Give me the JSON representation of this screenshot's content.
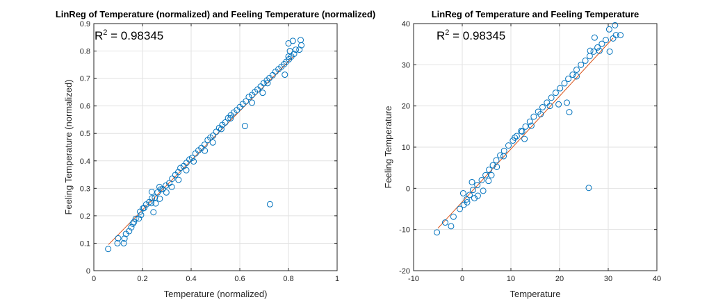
{
  "colors": {
    "marker": "#0072BD",
    "fit_line": "#D95319",
    "grid": "#e2e2e2",
    "axis": "#262626"
  },
  "chart_data": [
    {
      "type": "scatter",
      "title": "LinReg of Temperature (normalized) and Feeling Temperature (normalized)",
      "xlabel": "Temperature (normalized)",
      "ylabel": "Feeling Temperature (normalized)",
      "xlim": [
        0,
        1
      ],
      "ylim": [
        0,
        0.9
      ],
      "xticks": [
        0,
        0.2,
        0.4,
        0.6,
        0.8,
        1
      ],
      "yticks": [
        0,
        0.1,
        0.2,
        0.3,
        0.4,
        0.5,
        0.6,
        0.7,
        0.8,
        0.9
      ],
      "xtick_labels": [
        "0",
        "0.2",
        "0.4",
        "0.6",
        "0.8",
        "1"
      ],
      "ytick_labels": [
        "0",
        "0.1",
        "0.2",
        "0.3",
        "0.4",
        "0.5",
        "0.6",
        "0.7",
        "0.8",
        "0.9"
      ],
      "grid": true,
      "annotation": {
        "r2_label": "R",
        "r2_sup": "2",
        "r2_value": " = 0.98345"
      },
      "fit_line": {
        "x": [
          0.06,
          0.82
        ],
        "y": [
          0.095,
          0.78
        ]
      },
      "points": [
        [
          0.059,
          0.079
        ],
        [
          0.097,
          0.1
        ],
        [
          0.1,
          0.118
        ],
        [
          0.123,
          0.1
        ],
        [
          0.126,
          0.117
        ],
        [
          0.132,
          0.134
        ],
        [
          0.145,
          0.144
        ],
        [
          0.154,
          0.158
        ],
        [
          0.165,
          0.177
        ],
        [
          0.172,
          0.189
        ],
        [
          0.185,
          0.19
        ],
        [
          0.194,
          0.203
        ],
        [
          0.202,
          0.227
        ],
        [
          0.215,
          0.241
        ],
        [
          0.228,
          0.25
        ],
        [
          0.239,
          0.264
        ],
        [
          0.251,
          0.266
        ],
        [
          0.262,
          0.285
        ],
        [
          0.275,
          0.296
        ],
        [
          0.283,
          0.297
        ],
        [
          0.296,
          0.31
        ],
        [
          0.31,
          0.319
        ],
        [
          0.322,
          0.335
        ],
        [
          0.335,
          0.349
        ],
        [
          0.347,
          0.359
        ],
        [
          0.356,
          0.374
        ],
        [
          0.369,
          0.381
        ],
        [
          0.381,
          0.393
        ],
        [
          0.393,
          0.405
        ],
        [
          0.404,
          0.411
        ],
        [
          0.418,
          0.427
        ],
        [
          0.43,
          0.438
        ],
        [
          0.442,
          0.447
        ],
        [
          0.455,
          0.459
        ],
        [
          0.468,
          0.476
        ],
        [
          0.479,
          0.485
        ],
        [
          0.49,
          0.492
        ],
        [
          0.503,
          0.506
        ],
        [
          0.515,
          0.52
        ],
        [
          0.528,
          0.531
        ],
        [
          0.54,
          0.54
        ],
        [
          0.552,
          0.556
        ],
        [
          0.563,
          0.566
        ],
        [
          0.575,
          0.576
        ],
        [
          0.588,
          0.585
        ],
        [
          0.6,
          0.596
        ],
        [
          0.612,
          0.607
        ],
        [
          0.625,
          0.617
        ],
        [
          0.637,
          0.633
        ],
        [
          0.65,
          0.64
        ],
        [
          0.662,
          0.651
        ],
        [
          0.673,
          0.66
        ],
        [
          0.686,
          0.671
        ],
        [
          0.698,
          0.683
        ],
        [
          0.711,
          0.693
        ],
        [
          0.722,
          0.702
        ],
        [
          0.735,
          0.712
        ],
        [
          0.747,
          0.725
        ],
        [
          0.759,
          0.734
        ],
        [
          0.771,
          0.743
        ],
        [
          0.782,
          0.752
        ],
        [
          0.791,
          0.761
        ],
        [
          0.802,
          0.77
        ],
        [
          0.812,
          0.78
        ],
        [
          0.823,
          0.79
        ],
        [
          0.806,
          0.8
        ],
        [
          0.83,
          0.805
        ],
        [
          0.845,
          0.805
        ],
        [
          0.853,
          0.821
        ],
        [
          0.85,
          0.84
        ],
        [
          0.818,
          0.837
        ],
        [
          0.8,
          0.78
        ],
        [
          0.785,
          0.714
        ],
        [
          0.714,
          0.683
        ],
        [
          0.694,
          0.648
        ],
        [
          0.65,
          0.612
        ],
        [
          0.621,
          0.527
        ],
        [
          0.562,
          0.555
        ],
        [
          0.524,
          0.516
        ],
        [
          0.489,
          0.467
        ],
        [
          0.456,
          0.437
        ],
        [
          0.41,
          0.398
        ],
        [
          0.38,
          0.366
        ],
        [
          0.348,
          0.331
        ],
        [
          0.32,
          0.305
        ],
        [
          0.298,
          0.285
        ],
        [
          0.271,
          0.262
        ],
        [
          0.254,
          0.245
        ],
        [
          0.236,
          0.246
        ],
        [
          0.207,
          0.229
        ],
        [
          0.245,
          0.213
        ],
        [
          0.238,
          0.287
        ],
        [
          0.27,
          0.305
        ],
        [
          0.19,
          0.215
        ],
        [
          0.16,
          0.171
        ],
        [
          0.724,
          0.242
        ],
        [
          0.8,
          0.828
        ]
      ]
    },
    {
      "type": "scatter",
      "title": "LinReg of Temperature and Feeling Temperature",
      "xlabel": "Temperature",
      "ylabel": "Feeling Temperature",
      "xlim": [
        -10,
        40
      ],
      "ylim": [
        -20,
        40
      ],
      "xticks": [
        -10,
        0,
        10,
        20,
        30,
        40
      ],
      "yticks": [
        -20,
        -10,
        0,
        10,
        20,
        30,
        40
      ],
      "xtick_labels": [
        "-10",
        "0",
        "10",
        "20",
        "30",
        "40"
      ],
      "ytick_labels": [
        "-20",
        "-10",
        "0",
        "10",
        "20",
        "30",
        "40"
      ],
      "grid": true,
      "annotation": {
        "r2_label": "R",
        "r2_sup": "2",
        "r2_value": " = 0.98345"
      },
      "fit_line": {
        "x": [
          -5,
          31
        ],
        "y": [
          -9.7,
          36.5
        ]
      },
      "points": [
        [
          -5.2,
          -10.7
        ],
        [
          -3.5,
          -8.3
        ],
        [
          -2.3,
          -9.2
        ],
        [
          -1.8,
          -6.9
        ],
        [
          -0.5,
          -5.0
        ],
        [
          0.3,
          -4.0
        ],
        [
          0.9,
          -2.7
        ],
        [
          1.5,
          -1.6
        ],
        [
          2.2,
          -0.4
        ],
        [
          3.1,
          0.8
        ],
        [
          4.0,
          2.0
        ],
        [
          4.8,
          3.2
        ],
        [
          5.5,
          4.5
        ],
        [
          6.3,
          5.6
        ],
        [
          7.0,
          6.8
        ],
        [
          7.8,
          8.0
        ],
        [
          8.6,
          9.1
        ],
        [
          9.5,
          10.4
        ],
        [
          10.4,
          11.6
        ],
        [
          11.2,
          12.7
        ],
        [
          12.1,
          13.9
        ],
        [
          13.0,
          15.0
        ],
        [
          13.9,
          16.2
        ],
        [
          14.7,
          17.4
        ],
        [
          15.6,
          18.6
        ],
        [
          16.5,
          19.7
        ],
        [
          17.4,
          20.8
        ],
        [
          18.3,
          22.0
        ],
        [
          19.2,
          23.2
        ],
        [
          20.1,
          24.3
        ],
        [
          21.0,
          25.5
        ],
        [
          21.8,
          26.6
        ],
        [
          22.7,
          27.6
        ],
        [
          23.5,
          28.8
        ],
        [
          24.4,
          30.0
        ],
        [
          25.3,
          31.0
        ],
        [
          26.2,
          32.1
        ],
        [
          27.0,
          33.2
        ],
        [
          27.8,
          34.2
        ],
        [
          28.7,
          35.1
        ],
        [
          29.5,
          36.0
        ],
        [
          30.2,
          38.6
        ],
        [
          31.0,
          36.4
        ],
        [
          31.6,
          37.2
        ],
        [
          32.5,
          37.2
        ],
        [
          31.4,
          39.6
        ],
        [
          30.3,
          33.2
        ],
        [
          28.2,
          33.4
        ],
        [
          26.3,
          33.4
        ],
        [
          23.5,
          27.2
        ],
        [
          21.5,
          20.8
        ],
        [
          18.0,
          20.0
        ],
        [
          16.1,
          18.0
        ],
        [
          14.2,
          15.2
        ],
        [
          12.3,
          13.8
        ],
        [
          10.8,
          12.3
        ],
        [
          8.5,
          7.8
        ],
        [
          6.0,
          3.2
        ],
        [
          4.3,
          -0.6
        ],
        [
          2.5,
          -2.4
        ],
        [
          1.0,
          -3.4
        ],
        [
          0.2,
          -1.2
        ],
        [
          3.2,
          -1.8
        ],
        [
          5.4,
          1.8
        ],
        [
          2.0,
          1.5
        ],
        [
          22.0,
          18.5
        ],
        [
          27.2,
          36.6
        ],
        [
          19.8,
          20.4
        ],
        [
          12.8,
          12.0
        ],
        [
          7.1,
          5.2
        ],
        [
          26.0,
          0.1
        ]
      ]
    }
  ]
}
